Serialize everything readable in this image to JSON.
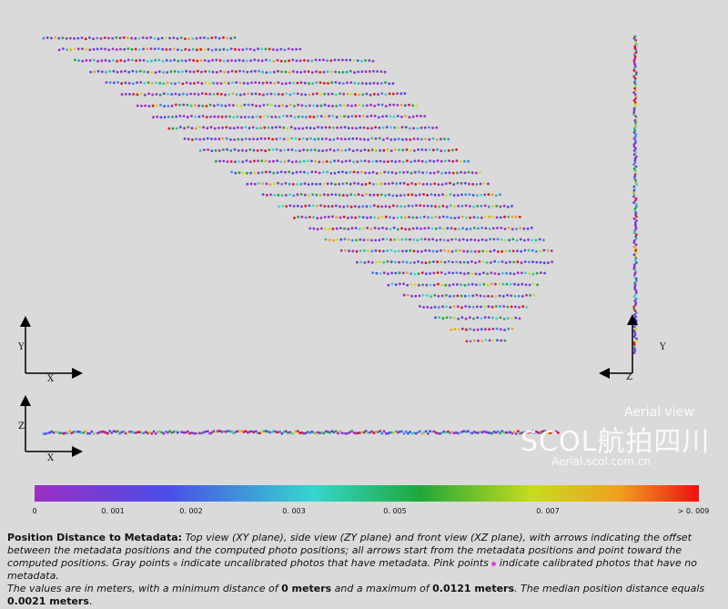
{
  "views": {
    "top_axes": {
      "x": "X",
      "y": "Y"
    },
    "side_axes": {
      "y": "Y",
      "z": "Z"
    },
    "front_axes": {
      "x": "X",
      "z": "Z"
    }
  },
  "colorbar": {
    "labels": [
      "0",
      "0. 001",
      "0. 002",
      "0. 003",
      "0. 005",
      "0. 007",
      "> 0. 009"
    ]
  },
  "watermark": {
    "top": "Aerial view",
    "main": "SCOL航拍四川",
    "url": "Aerial.scol.com.cn"
  },
  "caption": {
    "parts": [
      "Position Distance to Metadata:",
      " Top view (XY plane), side view (ZY plane) and front view (XZ plane), with arrows indicating the offset between the metadata positions and the computed photo positions; all arrows start from the metadata positions and point toward the computed positions. Gray points ",
      " indicate uncalibrated photos that have metadata. Pink points ",
      " indicate calibrated photos that have no metadata.",
      "The values are in meters, with a minimum distance of ",
      "0 meters",
      " and a maximum of ",
      "0.0121 meters",
      ". The median position distance equals ",
      "0.0021 meters",
      "."
    ]
  }
}
